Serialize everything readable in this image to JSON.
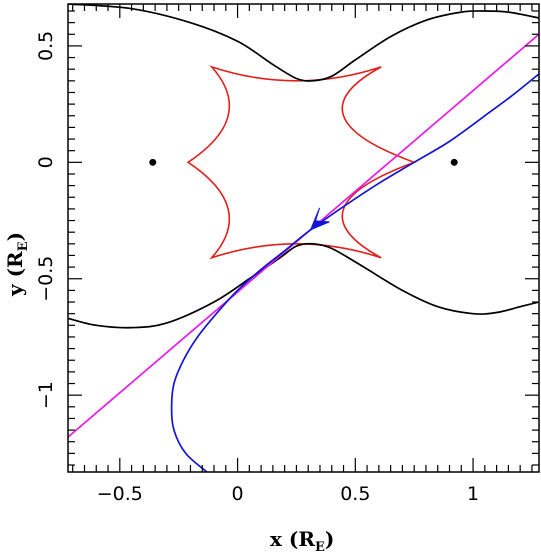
{
  "chart_data": {
    "type": "line",
    "title": "",
    "xlabel": "x (R",
    "xlabel_sub": "E",
    "xlabel_close": ")",
    "ylabel": "y (R",
    "ylabel_sub": "E",
    "ylabel_close": ")",
    "xlim": [
      -0.72,
      1.28
    ],
    "ylim": [
      -1.33,
      0.68
    ],
    "x_ticks": [
      {
        "value": -0.5,
        "label": "−0.5"
      },
      {
        "value": 0,
        "label": "0"
      },
      {
        "value": 0.5,
        "label": "0.5"
      },
      {
        "value": 1,
        "label": "1"
      }
    ],
    "y_ticks": [
      {
        "value": 0.5,
        "label": "0.5"
      },
      {
        "value": 0,
        "label": "0"
      },
      {
        "value": -0.5,
        "label": "−0.5"
      },
      {
        "value": -1,
        "label": "−1"
      }
    ],
    "grid": false,
    "legend": "none",
    "lenses": [
      {
        "x": -0.36,
        "y": 0
      },
      {
        "x": 0.92,
        "y": 0
      }
    ],
    "caustic": {
      "color": "#e0201c",
      "cusps": [
        [
          -0.21,
          0.0
        ],
        [
          -0.11,
          0.41
        ],
        [
          0.61,
          0.41
        ],
        [
          0.75,
          0.0
        ],
        [
          0.61,
          -0.41
        ],
        [
          -0.11,
          -0.41
        ]
      ],
      "mid_points": [
        [
          -0.04,
          0.2
        ],
        [
          0.25,
          0.35
        ],
        [
          0.45,
          0.2
        ],
        [
          0.45,
          -0.2
        ],
        [
          0.25,
          -0.35
        ],
        [
          -0.04,
          -0.2
        ]
      ]
    },
    "series": [
      {
        "color": "#000000",
        "points": [
          [
            -0.72,
            0.68
          ],
          [
            -0.45,
            0.66
          ],
          [
            -0.2,
            0.6
          ],
          [
            0.0,
            0.52
          ],
          [
            0.15,
            0.42
          ],
          [
            0.25,
            0.36
          ],
          [
            0.32,
            0.35
          ],
          [
            0.4,
            0.37
          ],
          [
            0.5,
            0.44
          ],
          [
            0.65,
            0.54
          ],
          [
            0.8,
            0.61
          ],
          [
            0.95,
            0.645
          ],
          [
            1.05,
            0.65
          ],
          [
            1.15,
            0.645
          ],
          [
            1.28,
            0.62
          ]
        ]
      },
      {
        "color": "#000000",
        "points": [
          [
            -0.72,
            -0.67
          ],
          [
            -0.6,
            -0.7
          ],
          [
            -0.45,
            -0.71
          ],
          [
            -0.3,
            -0.69
          ],
          [
            -0.1,
            -0.6
          ],
          [
            0.05,
            -0.5
          ],
          [
            0.18,
            -0.41
          ],
          [
            0.25,
            -0.36
          ],
          [
            0.32,
            -0.35
          ],
          [
            0.4,
            -0.37
          ],
          [
            0.52,
            -0.44
          ],
          [
            0.7,
            -0.55
          ],
          [
            0.85,
            -0.62
          ],
          [
            1.0,
            -0.65
          ],
          [
            1.1,
            -0.645
          ],
          [
            1.2,
            -0.62
          ],
          [
            1.28,
            -0.6
          ]
        ]
      },
      {
        "color": "#e81ae8",
        "points": [
          [
            -0.72,
            -1.18
          ],
          [
            1.28,
            0.55
          ]
        ]
      },
      {
        "color": "#1414d4",
        "points": [
          [
            -0.13,
            -1.33
          ],
          [
            -0.22,
            -1.25
          ],
          [
            -0.27,
            -1.15
          ],
          [
            -0.28,
            -1.05
          ],
          [
            -0.27,
            -0.95
          ],
          [
            -0.23,
            -0.85
          ],
          [
            -0.17,
            -0.75
          ],
          [
            -0.09,
            -0.65
          ],
          [
            0.0,
            -0.55
          ],
          [
            0.1,
            -0.46
          ],
          [
            0.2,
            -0.38
          ],
          [
            0.31,
            -0.29
          ],
          [
            0.45,
            -0.19
          ],
          [
            0.6,
            -0.09
          ],
          [
            0.75,
            0.0
          ],
          [
            0.9,
            0.09
          ],
          [
            1.05,
            0.2
          ],
          [
            1.17,
            0.29
          ],
          [
            1.28,
            0.38
          ]
        ]
      }
    ],
    "arrow": {
      "x": 0.31,
      "y": -0.29,
      "color": "#1414d4"
    }
  }
}
